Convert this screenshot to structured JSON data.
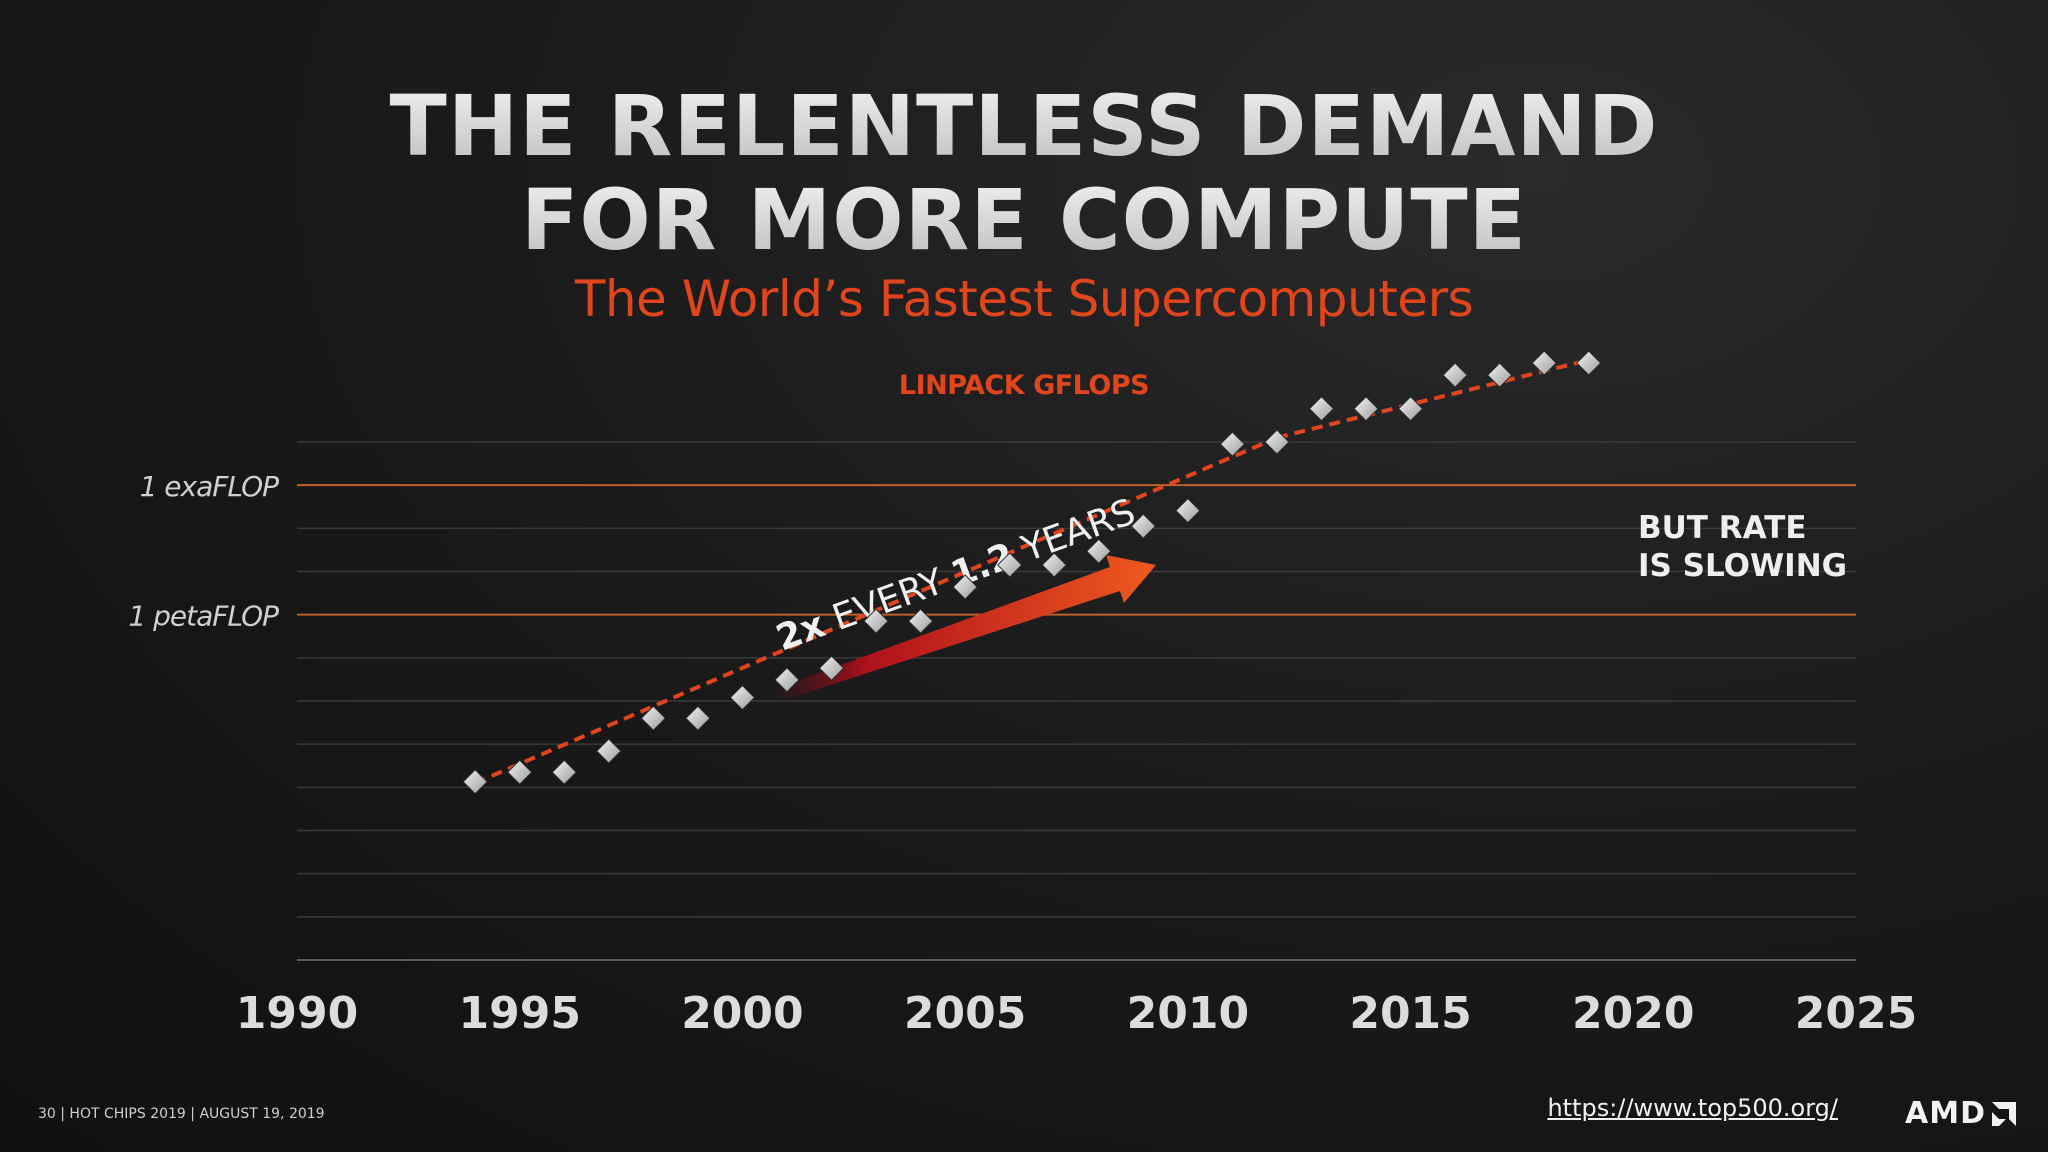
{
  "slide": {
    "title_line1": "THE RELENTLESS DEMAND",
    "title_line2": "FOR MORE COMPUTE",
    "subtitle": "The World’s Fastest Supercomputers",
    "chart_heading": "LINPACK GFLOPS"
  },
  "footer": {
    "text": "30   |  HOT CHIPS 2019  |  AUGUST 19, 2019",
    "source_link": "https://www.top500.org/",
    "logo": "AMD"
  },
  "colors": {
    "accent": "#e0451c",
    "reference_line": "#c0602a",
    "gridline": "#3a3a3a",
    "marker": "#d8d8d8",
    "trend": "#e0451c"
  },
  "chart_data": {
    "type": "scatter",
    "title": "LINPACK GFLOPS",
    "xlabel": "",
    "ylabel": "",
    "xlim": [
      1990,
      2025
    ],
    "x_ticks": [
      "1990",
      "1995",
      "2000",
      "2005",
      "2010",
      "2015",
      "2020",
      "2025"
    ],
    "y_scale": "log",
    "ylim_log10_gflops": [
      -2,
      10
    ],
    "grid": true,
    "reference_lines": [
      {
        "label": "1 exaFLOP",
        "log10_gflops": 9
      },
      {
        "label": "1 petaFLOP",
        "log10_gflops": 6
      }
    ],
    "series": [
      {
        "marker": "diamond",
        "x": [
          1994,
          1995,
          1996,
          1997,
          1998,
          1999,
          2000,
          2001,
          2002,
          2003,
          2004,
          2005,
          2006,
          2007,
          2008,
          2009,
          2010,
          2011,
          2012,
          2013,
          2014,
          2015,
          2016,
          2017,
          2018,
          2019
        ],
        "log10_gflops": [
          2.13,
          2.35,
          2.35,
          2.84,
          3.6,
          3.6,
          4.08,
          4.49,
          4.76,
          5.85,
          5.85,
          6.64,
          7.15,
          7.15,
          7.47,
          8.05,
          8.41,
          9.95,
          10.0,
          10.77,
          10.77,
          10.77,
          11.55,
          11.55,
          11.83,
          11.83
        ]
      }
    ],
    "trend_lines": [
      {
        "style": "dashed",
        "from": [
          1994,
          2.1
        ],
        "to": [
          2012,
          10.1
        ]
      },
      {
        "style": "dashed",
        "from": [
          2012,
          10.1
        ],
        "to": [
          2019,
          11.9
        ]
      }
    ],
    "annotations": [
      {
        "text_parts": [
          "2x",
          " EVERY ",
          "1.2",
          " YEARS"
        ]
      },
      {
        "lines": [
          "BUT RATE",
          "IS SLOWING"
        ]
      }
    ]
  }
}
